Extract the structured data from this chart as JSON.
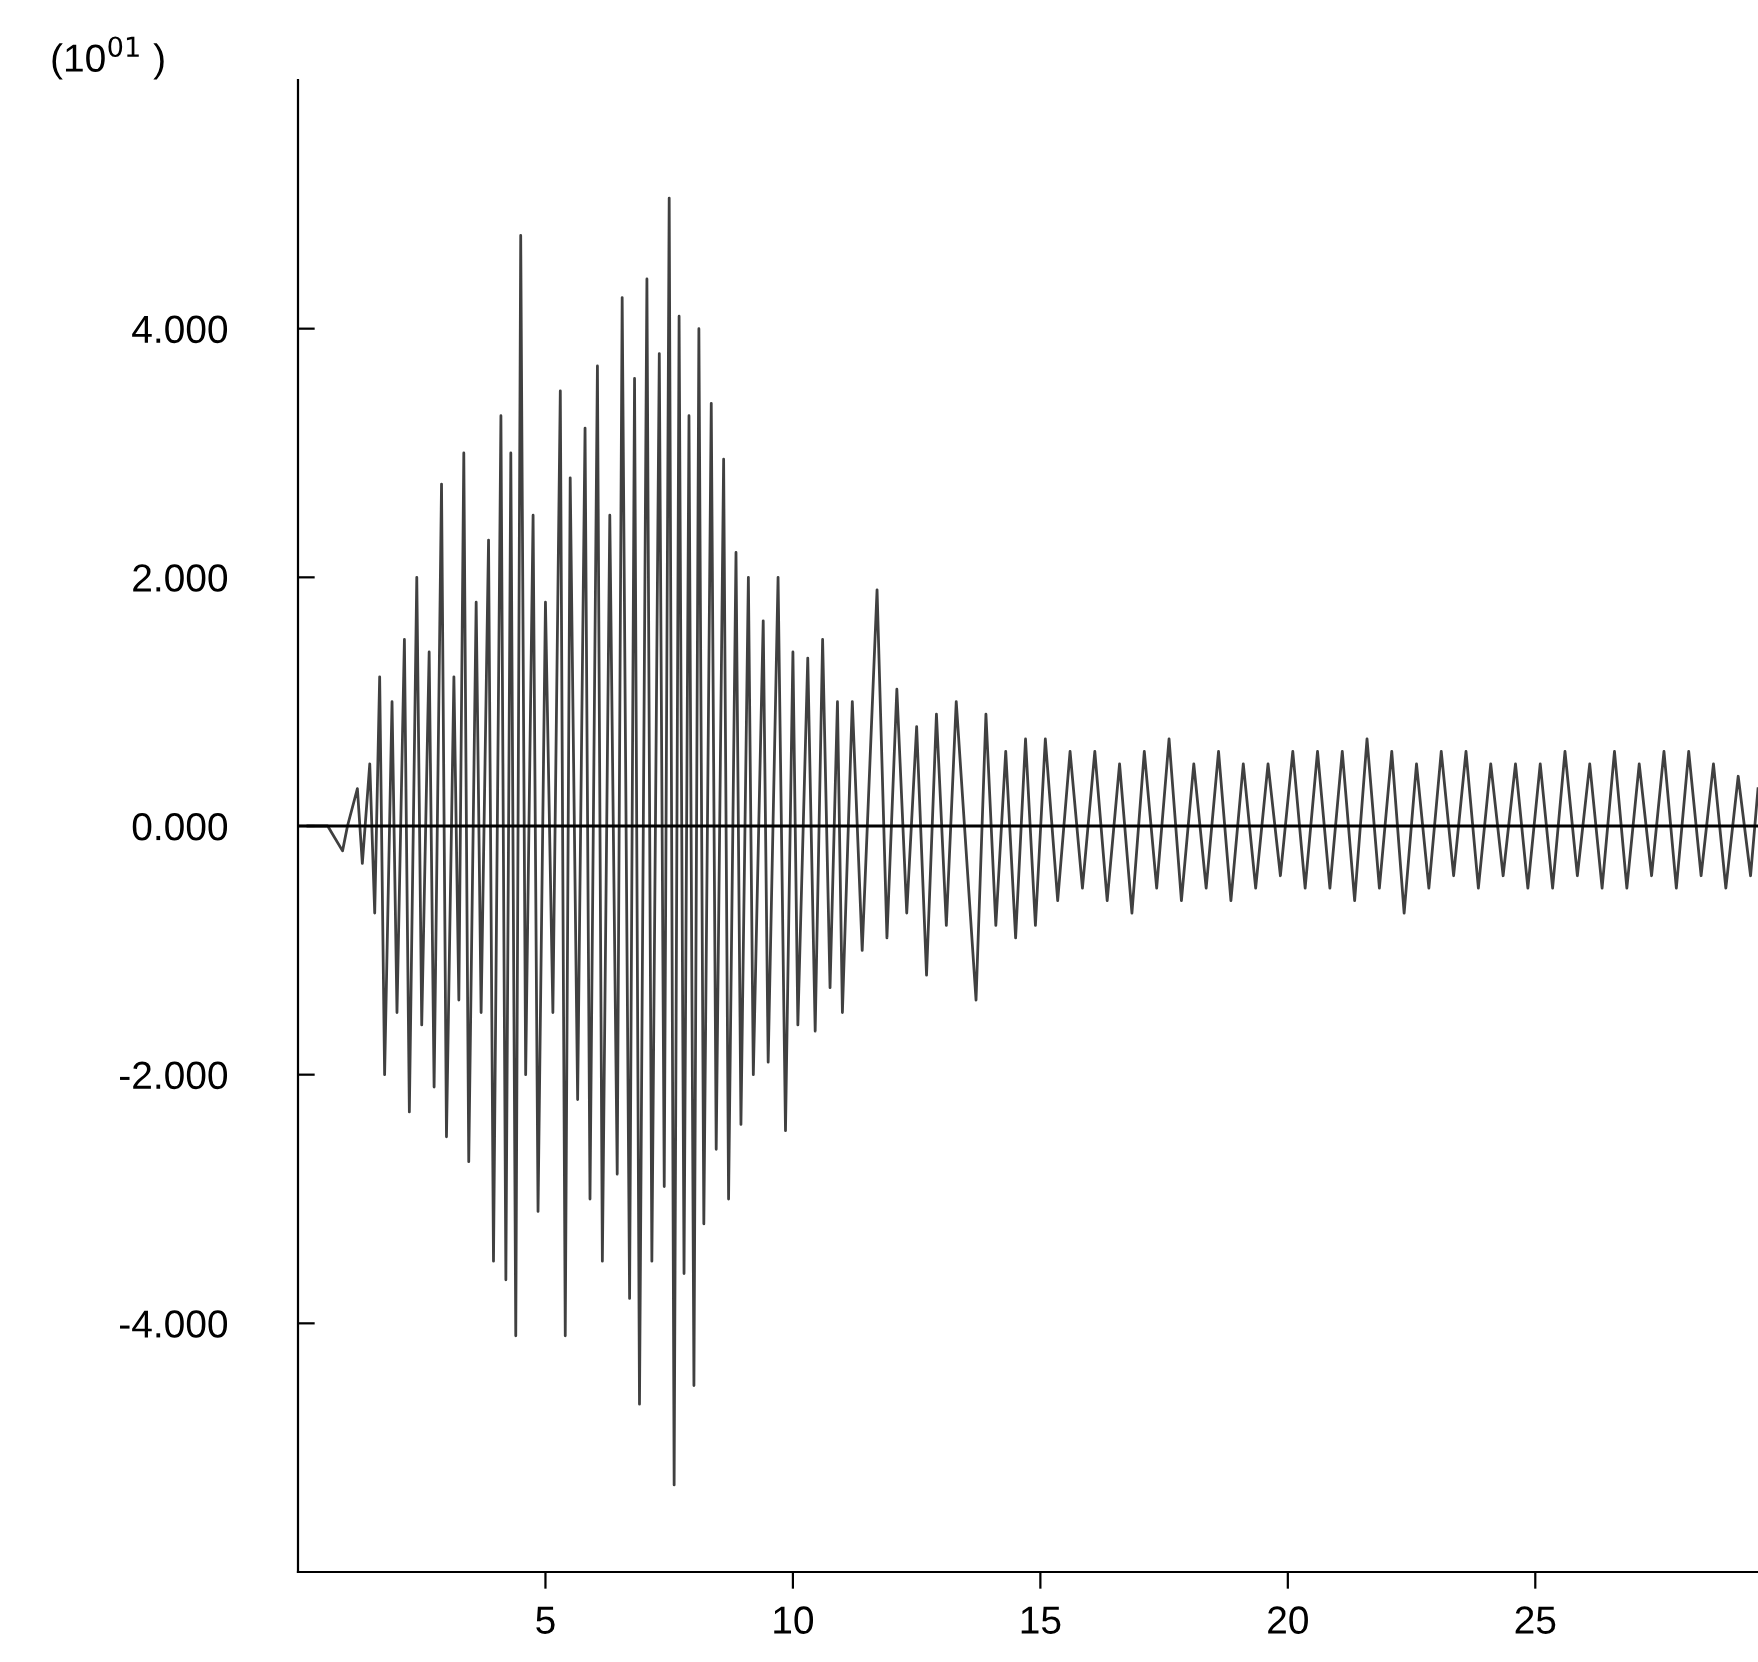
{
  "chart_data": {
    "type": "line",
    "ylabel": "(10$^{01}$ )",
    "xlim": [
      0,
      29.5
    ],
    "xticks": [
      5,
      10,
      15,
      20,
      25
    ],
    "ylim": [
      -6,
      6
    ],
    "yticks": [
      {
        "value": -4,
        "label": "-4.000"
      },
      {
        "value": -2,
        "label": "-2.000"
      },
      {
        "value": 0,
        "label": "0.000"
      },
      {
        "value": 2,
        "label": "2.000"
      },
      {
        "value": 4,
        "label": "4.000"
      }
    ],
    "grid": false,
    "legend": false,
    "marker": "none",
    "line_style": "solid",
    "ref_lines": [
      {
        "axis": "y",
        "value": 0,
        "color": "#000000"
      }
    ],
    "series": [
      {
        "color": "#404040",
        "x": [
          0.2,
          0.6,
          0.9,
          1.0,
          1.2,
          1.3,
          1.45,
          1.55,
          1.65,
          1.75,
          1.9,
          2.0,
          2.15,
          2.25,
          2.4,
          2.5,
          2.65,
          2.75,
          2.9,
          3.0,
          3.15,
          3.25,
          3.35,
          3.45,
          3.6,
          3.7,
          3.85,
          3.95,
          4.1,
          4.2,
          4.3,
          4.4,
          4.5,
          4.6,
          4.75,
          4.85,
          5.0,
          5.15,
          5.3,
          5.4,
          5.5,
          5.65,
          5.8,
          5.9,
          6.05,
          6.15,
          6.3,
          6.45,
          6.55,
          6.7,
          6.8,
          6.9,
          7.05,
          7.15,
          7.3,
          7.4,
          7.5,
          7.6,
          7.7,
          7.8,
          7.9,
          8.0,
          8.1,
          8.2,
          8.35,
          8.45,
          8.6,
          8.7,
          8.85,
          8.95,
          9.1,
          9.2,
          9.4,
          9.5,
          9.7,
          9.85,
          10.0,
          10.1,
          10.3,
          10.45,
          10.6,
          10.75,
          10.9,
          11.0,
          11.2,
          11.4,
          11.7,
          11.9,
          12.1,
          12.3,
          12.5,
          12.7,
          12.9,
          13.1,
          13.3,
          13.7,
          13.9,
          14.1,
          14.3,
          14.5,
          14.7,
          14.9,
          15.1,
          15.35,
          15.6,
          15.85,
          16.1,
          16.35,
          16.6,
          16.85,
          17.1,
          17.35,
          17.6,
          17.85,
          18.1,
          18.35,
          18.6,
          18.85,
          19.1,
          19.35,
          19.6,
          19.85,
          20.1,
          20.35,
          20.6,
          20.85,
          21.1,
          21.35,
          21.6,
          21.85,
          22.1,
          22.35,
          22.6,
          22.85,
          23.1,
          23.35,
          23.6,
          23.85,
          24.1,
          24.35,
          24.6,
          24.85,
          25.1,
          25.35,
          25.6,
          25.85,
          26.1,
          26.35,
          26.6,
          26.85,
          27.1,
          27.35,
          27.6,
          27.85,
          28.1,
          28.35,
          28.6,
          28.85,
          29.1,
          29.35,
          29.5
        ],
        "values": [
          0,
          0,
          -0.2,
          0,
          0.3,
          -0.3,
          0.5,
          -0.7,
          1.2,
          -2.0,
          1.0,
          -1.5,
          1.5,
          -2.3,
          2.0,
          -1.6,
          1.4,
          -2.1,
          2.75,
          -2.5,
          1.2,
          -1.4,
          3.0,
          -2.7,
          1.8,
          -1.5,
          2.3,
          -3.5,
          3.3,
          -3.65,
          3.0,
          -4.1,
          4.75,
          -2.0,
          2.5,
          -3.1,
          1.8,
          -1.5,
          3.5,
          -4.1,
          2.8,
          -2.2,
          3.2,
          -3.0,
          3.7,
          -3.5,
          2.5,
          -2.8,
          4.25,
          -3.8,
          3.6,
          -4.65,
          4.4,
          -3.5,
          3.8,
          -2.9,
          5.05,
          -5.3,
          4.1,
          -3.6,
          3.3,
          -4.5,
          4.0,
          -3.2,
          3.4,
          -2.6,
          2.95,
          -3.0,
          2.2,
          -2.4,
          2.0,
          -2.0,
          1.65,
          -1.9,
          2.0,
          -2.45,
          1.4,
          -1.6,
          1.35,
          -1.65,
          1.5,
          -1.3,
          1.0,
          -1.5,
          1.0,
          -1.0,
          1.9,
          -0.9,
          1.1,
          -0.7,
          0.8,
          -1.2,
          0.9,
          -0.8,
          1.0,
          -1.4,
          0.9,
          -0.8,
          0.6,
          -0.9,
          0.7,
          -0.8,
          0.7,
          -0.6,
          0.6,
          -0.5,
          0.6,
          -0.6,
          0.5,
          -0.7,
          0.6,
          -0.5,
          0.7,
          -0.6,
          0.5,
          -0.5,
          0.6,
          -0.6,
          0.5,
          -0.5,
          0.5,
          -0.4,
          0.6,
          -0.5,
          0.6,
          -0.5,
          0.6,
          -0.6,
          0.7,
          -0.5,
          0.6,
          -0.7,
          0.5,
          -0.5,
          0.6,
          -0.4,
          0.6,
          -0.5,
          0.5,
          -0.4,
          0.5,
          -0.5,
          0.5,
          -0.5,
          0.6,
          -0.4,
          0.5,
          -0.5,
          0.6,
          -0.5,
          0.5,
          -0.4,
          0.6,
          -0.5,
          0.6,
          -0.4,
          0.5,
          -0.5,
          0.4,
          -0.4,
          0.3
        ]
      }
    ]
  }
}
